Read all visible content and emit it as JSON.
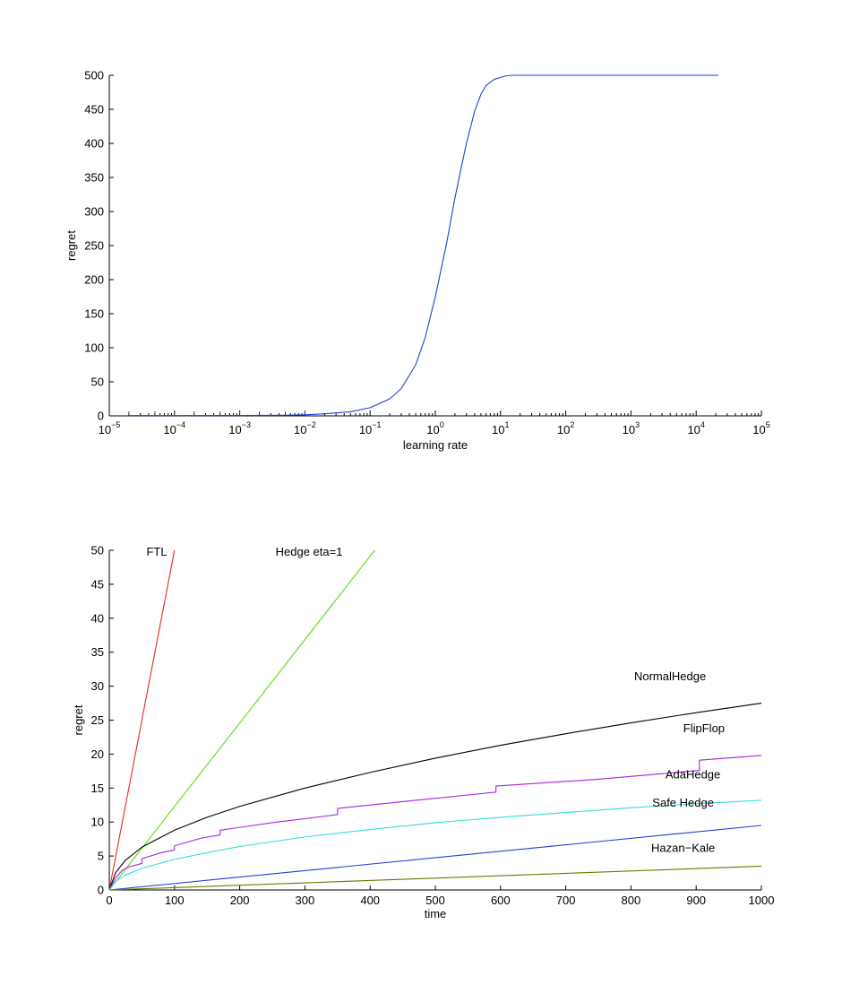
{
  "chart_data": [
    {
      "type": "line",
      "title": "",
      "xlabel": "learning rate",
      "ylabel": "regret",
      "xscale": "log",
      "xlim": [
        1e-05,
        100000
      ],
      "ylim": [
        0,
        500
      ],
      "x_tick_labels": [
        {
          "base": "10",
          "exp": "−5",
          "value": 1e-05
        },
        {
          "base": "10",
          "exp": "−4",
          "value": 0.0001
        },
        {
          "base": "10",
          "exp": "−3",
          "value": 0.001
        },
        {
          "base": "10",
          "exp": "−2",
          "value": 0.01
        },
        {
          "base": "10",
          "exp": "−1",
          "value": 0.1
        },
        {
          "base": "10",
          "exp": "0",
          "value": 1
        },
        {
          "base": "10",
          "exp": "1",
          "value": 10
        },
        {
          "base": "10",
          "exp": "2",
          "value": 100
        },
        {
          "base": "10",
          "exp": "3",
          "value": 1000
        },
        {
          "base": "10",
          "exp": "4",
          "value": 10000
        },
        {
          "base": "10",
          "exp": "5",
          "value": 100000
        }
      ],
      "y_ticks": [
        0,
        50,
        100,
        150,
        200,
        250,
        300,
        350,
        400,
        450,
        500
      ],
      "grid": false,
      "rug_marks": true,
      "series": [
        {
          "color": "#1f3fd8",
          "x": [
            2e-05,
            0.0001,
            0.001,
            0.005,
            0.01,
            0.02,
            0.05,
            0.1,
            0.2,
            0.3,
            0.5,
            0.7,
            1,
            1.5,
            2,
            2.5,
            3,
            4,
            5,
            6,
            8,
            10,
            12,
            15,
            20,
            30,
            50,
            100,
            1000,
            10000,
            22000
          ],
          "y": [
            0.5,
            0.5,
            0.6,
            1,
            1.5,
            3,
            6,
            12,
            25,
            40,
            75,
            115,
            175,
            255,
            320,
            365,
            400,
            447,
            472,
            485,
            494,
            497,
            499,
            500,
            500,
            500,
            500,
            500,
            500,
            500,
            500
          ]
        }
      ]
    },
    {
      "type": "line",
      "title": "",
      "xlabel": "time",
      "ylabel": "regret",
      "xlim": [
        0,
        1000
      ],
      "ylim": [
        0,
        50
      ],
      "x_ticks": [
        0,
        100,
        200,
        300,
        400,
        500,
        600,
        700,
        800,
        900,
        1000
      ],
      "y_ticks": [
        0,
        5,
        10,
        15,
        20,
        25,
        30,
        35,
        40,
        45,
        50
      ],
      "grid": false,
      "legend": "inline labels",
      "series": [
        {
          "name": "FTL",
          "color": "#e8262a",
          "x": [
            0,
            100
          ],
          "y": [
            0,
            50
          ]
        },
        {
          "name": "Hedge eta=1",
          "color": "#55dd11",
          "x": [
            0,
            407
          ],
          "y": [
            0,
            50
          ]
        },
        {
          "name": "NormalHedge",
          "color": "#000000",
          "x": [
            0,
            10,
            25,
            50,
            100,
            150,
            200,
            300,
            400,
            500,
            600,
            700,
            800,
            900,
            1000
          ],
          "y": [
            0,
            2.6,
            4.4,
            6.3,
            8.8,
            10.7,
            12.3,
            15.0,
            17.3,
            19.4,
            21.3,
            23.0,
            24.6,
            26.1,
            27.5
          ]
        },
        {
          "name": "FlipFlop",
          "color": "#aa22dd",
          "x": [
            0,
            10,
            20,
            30,
            50,
            50.01,
            80,
            100,
            100.01,
            140,
            170,
            170.01,
            250,
            350,
            350.01,
            450,
            593,
            593.01,
            750,
            905,
            905.01,
            1000
          ],
          "y": [
            0,
            1.8,
            2.9,
            3.4,
            3.9,
            4.6,
            5.5,
            5.9,
            6.5,
            7.6,
            8.1,
            8.8,
            9.9,
            11.1,
            12.0,
            13.0,
            14.4,
            15.3,
            16.3,
            17.6,
            19.1,
            19.8
          ]
        },
        {
          "name": "AdaHedge",
          "color": "#33dddd",
          "x": [
            0,
            10,
            25,
            50,
            100,
            150,
            200,
            300,
            400,
            500,
            600,
            700,
            800,
            900,
            1000
          ],
          "y": [
            0,
            1.3,
            2.2,
            3.2,
            4.5,
            5.5,
            6.4,
            7.8,
            8.9,
            9.9,
            10.7,
            11.4,
            12.1,
            12.7,
            13.2
          ]
        },
        {
          "name": "Safe Hedge",
          "color": "#1f3fd8",
          "x": [
            0,
            1000
          ],
          "y": [
            0,
            9.5
          ]
        },
        {
          "name": "Hazan−Kale",
          "color": "#6b7a00",
          "x": [
            0,
            1000
          ],
          "y": [
            0,
            3.5
          ]
        }
      ],
      "annotations": [
        {
          "text": "FTL",
          "x": 57,
          "y": 49.2
        },
        {
          "text": "Hedge eta=1",
          "x": 255,
          "y": 49.2
        },
        {
          "text": "NormalHedge",
          "x": 860,
          "y": 30.9
        },
        {
          "text": "FlipFlop",
          "x": 912,
          "y": 23.2
        },
        {
          "text": "AdaHedge",
          "x": 895,
          "y": 16.4
        },
        {
          "text": "Safe Hedge",
          "x": 880,
          "y": 12.3
        },
        {
          "text": "Hazan−Kale",
          "x": 880,
          "y": 5.6
        }
      ]
    }
  ]
}
